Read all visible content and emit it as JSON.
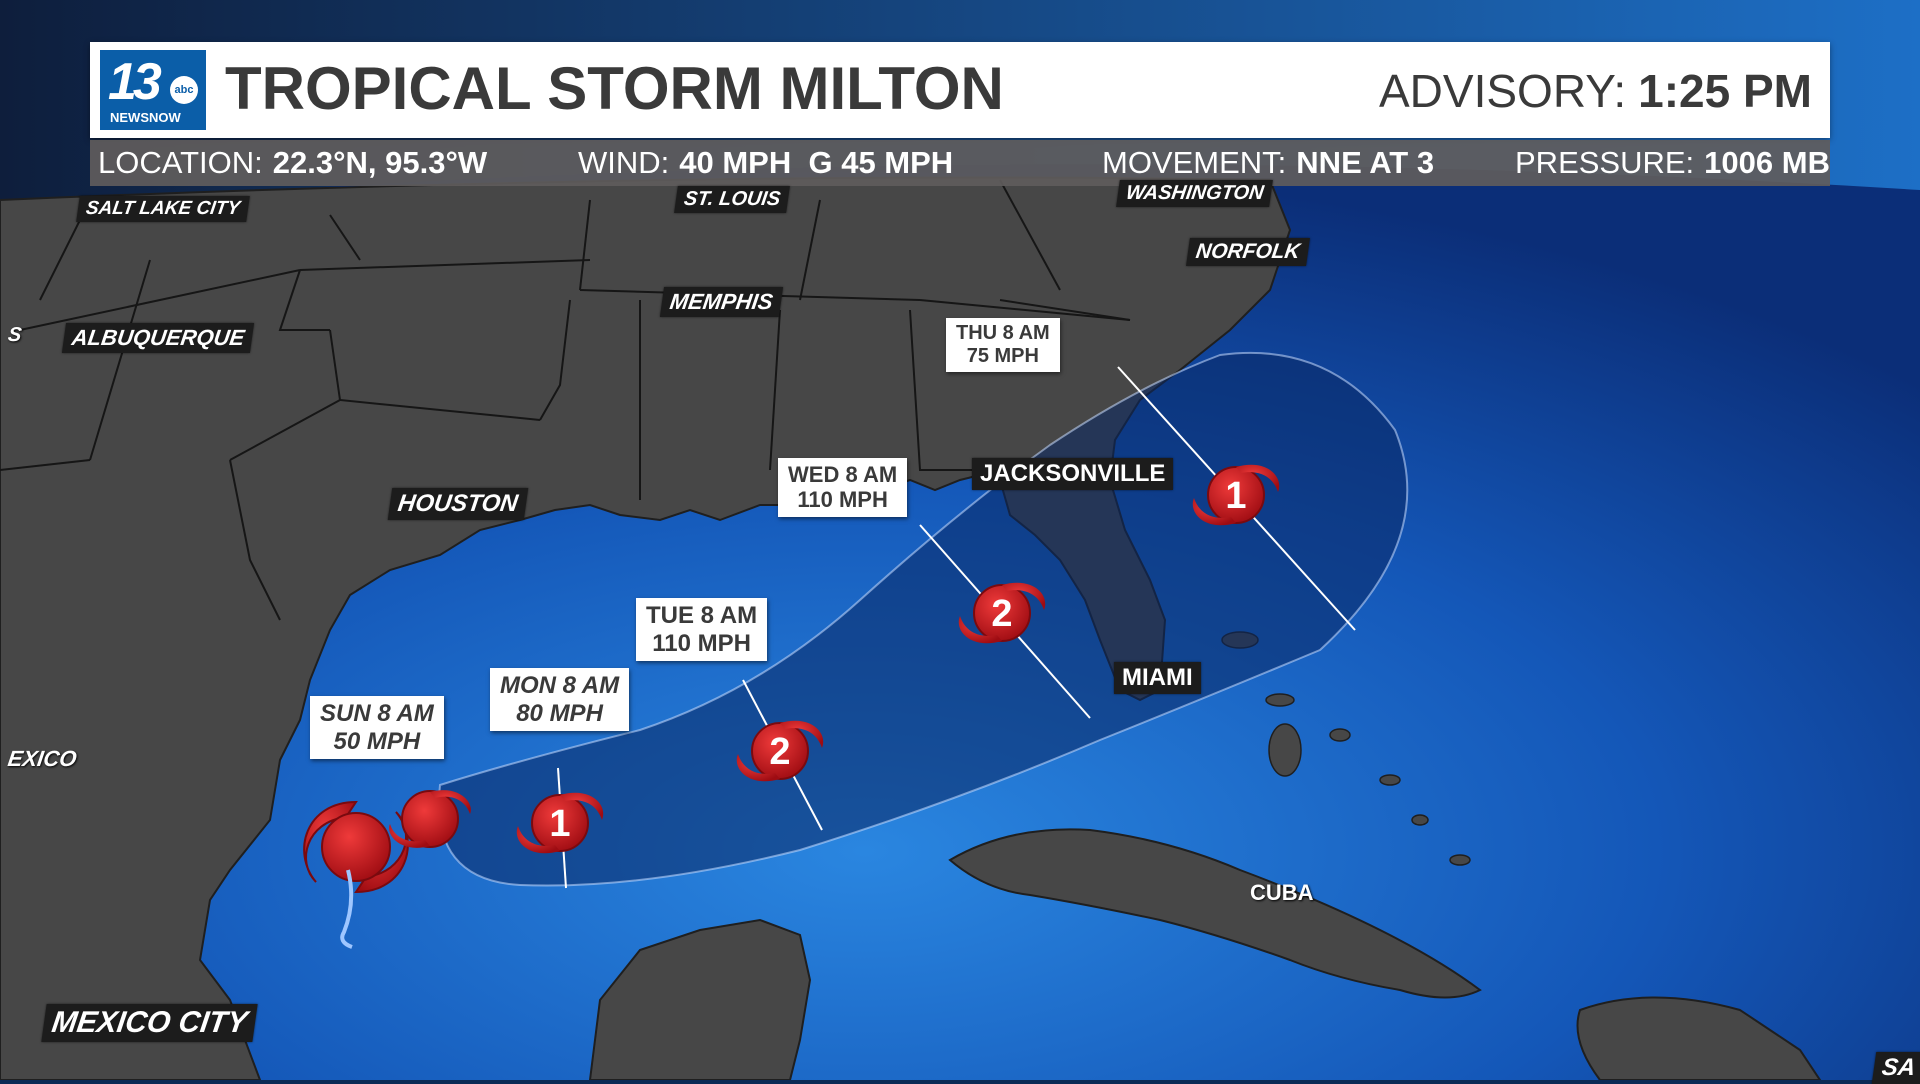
{
  "header": {
    "logo_number": "13",
    "logo_network": "abc",
    "logo_sub": "NEWSNOW",
    "title": "TROPICAL STORM MILTON",
    "advisory_label": "ADVISORY:",
    "advisory_time": "1:25 PM"
  },
  "info": {
    "location_label": "LOCATION:",
    "location_value": "22.3°N, 95.3°W",
    "wind_label": "WIND:",
    "wind_value": "40 MPH  G 45 MPH",
    "movement_label": "MOVEMENT:",
    "movement_value": "NNE AT 3",
    "pressure_label": "PRESSURE:",
    "pressure_value": "1006 MB"
  },
  "cities": {
    "salt_lake_city": "SALT LAKE CITY",
    "st_louis": "ST. LOUIS",
    "washington": "WASHINGTON",
    "norfolk": "NORFOLK",
    "memphis": "MEMPHIS",
    "albuquerque": "ALBUQUERQUE",
    "houston": "HOUSTON",
    "jacksonville": "JACKSONVILLE",
    "miami": "MIAMI",
    "mexico": "EXICO",
    "mexico_city": "MEXICO CITY",
    "cuba": "CUBA",
    "edge_left": "S",
    "edge_right": "SA"
  },
  "forecast_points": [
    {
      "time": "SUN 8 AM",
      "wind": "50 MPH",
      "category": ""
    },
    {
      "time": "MON 8 AM",
      "wind": "80 MPH",
      "category": "1"
    },
    {
      "time": "TUE 8 AM",
      "wind": "110 MPH",
      "category": "2"
    },
    {
      "time": "WED 8 AM",
      "wind": "110 MPH",
      "category": "2"
    },
    {
      "time": "THU 8 AM",
      "wind": "75 MPH",
      "category": "1"
    }
  ],
  "colors": {
    "ocean": "#1b63c2",
    "land": "#474747",
    "cone": "#0b2f6a",
    "storm_red": "#c8141e",
    "header_text": "#3a3a3a",
    "logo_blue": "#0b5ea8"
  },
  "icons": {
    "storm": "hurricane-symbol-icon",
    "current": "tropical-storm-symbol-icon"
  }
}
